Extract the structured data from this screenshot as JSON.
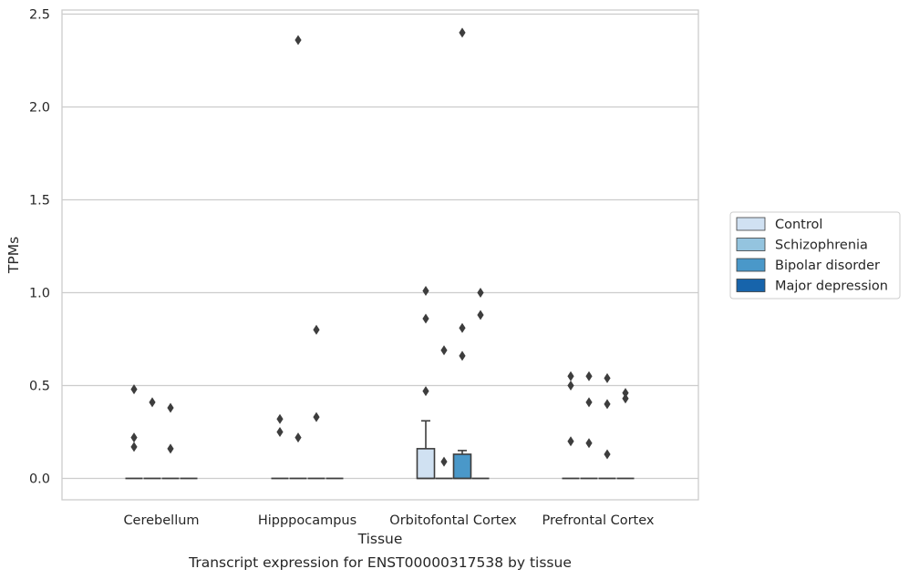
{
  "colors": {
    "control": "#d0e1f2",
    "schizophrenia": "#94c4df",
    "bipolar": "#4a98c9",
    "depression": "#1764ab",
    "grid": "#cccccc",
    "text": "#262626",
    "flier": "#3d3d3d",
    "box_edge": "#3d3d3d"
  },
  "caption": "Transcript expression for ENST00000317538 by tissue",
  "chart_data": {
    "type": "box",
    "title": "",
    "xlabel": "Tissue",
    "ylabel": "TPMs",
    "ylim": [
      -0.12,
      2.53
    ],
    "yticks": [
      "0.0",
      "0.5",
      "1.0",
      "1.5",
      "2.0",
      "2.5"
    ],
    "categories": [
      "Cerebellum",
      "Hipppocampus",
      "Orbitofontal Cortex",
      "Prefrontal Cortex"
    ],
    "grid": "y",
    "legend_position": "right",
    "legend": [
      "Control",
      "Schizophrenia",
      "Bipolar disorder",
      "Major depression"
    ],
    "series": [
      {
        "name": "Control",
        "boxes": [
          {
            "category": "Cerebellum",
            "q1": 0,
            "median": 0,
            "q3": 0,
            "whisker_low": 0,
            "whisker_high": 0,
            "fliers": [
              0.48,
              0.22,
              0.17
            ]
          },
          {
            "category": "Hipppocampus",
            "q1": 0,
            "median": 0,
            "q3": 0,
            "whisker_low": 0,
            "whisker_high": 0,
            "fliers": [
              0.32,
              0.25
            ]
          },
          {
            "category": "Orbitofontal Cortex",
            "q1": 0,
            "median": 0,
            "q3": 0.16,
            "whisker_low": 0,
            "whisker_high": 0.31,
            "fliers": [
              1.01,
              0.86,
              0.47
            ]
          },
          {
            "category": "Prefrontal Cortex",
            "q1": 0,
            "median": 0,
            "q3": 0,
            "whisker_low": 0,
            "whisker_high": 0,
            "fliers": [
              0.55,
              0.5,
              0.2
            ]
          }
        ]
      },
      {
        "name": "Schizophrenia",
        "boxes": [
          {
            "category": "Cerebellum",
            "q1": 0,
            "median": 0,
            "q3": 0,
            "whisker_low": 0,
            "whisker_high": 0,
            "fliers": [
              0.41
            ]
          },
          {
            "category": "Hipppocampus",
            "q1": 0,
            "median": 0,
            "q3": 0,
            "whisker_low": 0,
            "whisker_high": 0,
            "fliers": [
              2.36,
              0.22
            ]
          },
          {
            "category": "Orbitofontal Cortex",
            "q1": 0,
            "median": 0,
            "q3": 0,
            "whisker_low": 0,
            "whisker_high": 0,
            "fliers": [
              0.69,
              0.09
            ]
          },
          {
            "category": "Prefrontal Cortex",
            "q1": 0,
            "median": 0,
            "q3": 0,
            "whisker_low": 0,
            "whisker_high": 0,
            "fliers": [
              0.55,
              0.41,
              0.19
            ]
          }
        ]
      },
      {
        "name": "Bipolar disorder",
        "boxes": [
          {
            "category": "Cerebellum",
            "q1": 0,
            "median": 0,
            "q3": 0,
            "whisker_low": 0,
            "whisker_high": 0,
            "fliers": [
              0.38,
              0.16
            ]
          },
          {
            "category": "Hipppocampus",
            "q1": 0,
            "median": 0,
            "q3": 0,
            "whisker_low": 0,
            "whisker_high": 0,
            "fliers": [
              0.8,
              0.33
            ]
          },
          {
            "category": "Orbitofontal Cortex",
            "q1": 0,
            "median": 0,
            "q3": 0.13,
            "whisker_low": 0,
            "whisker_high": 0.15,
            "fliers": [
              2.4,
              0.81,
              0.66
            ]
          },
          {
            "category": "Prefrontal Cortex",
            "q1": 0,
            "median": 0,
            "q3": 0,
            "whisker_low": 0,
            "whisker_high": 0,
            "fliers": [
              0.54,
              0.4,
              0.13
            ]
          }
        ]
      },
      {
        "name": "Major depression",
        "boxes": [
          {
            "category": "Cerebellum",
            "q1": 0,
            "median": 0,
            "q3": 0,
            "whisker_low": 0,
            "whisker_high": 0,
            "fliers": []
          },
          {
            "category": "Hipppocampus",
            "q1": 0,
            "median": 0,
            "q3": 0,
            "whisker_low": 0,
            "whisker_high": 0,
            "fliers": []
          },
          {
            "category": "Orbitofontal Cortex",
            "q1": 0,
            "median": 0,
            "q3": 0,
            "whisker_low": 0,
            "whisker_high": 0,
            "fliers": [
              1.0,
              0.88
            ]
          },
          {
            "category": "Prefrontal Cortex",
            "q1": 0,
            "median": 0,
            "q3": 0,
            "whisker_low": 0,
            "whisker_high": 0,
            "fliers": [
              0.46,
              0.43
            ]
          }
        ]
      }
    ]
  }
}
